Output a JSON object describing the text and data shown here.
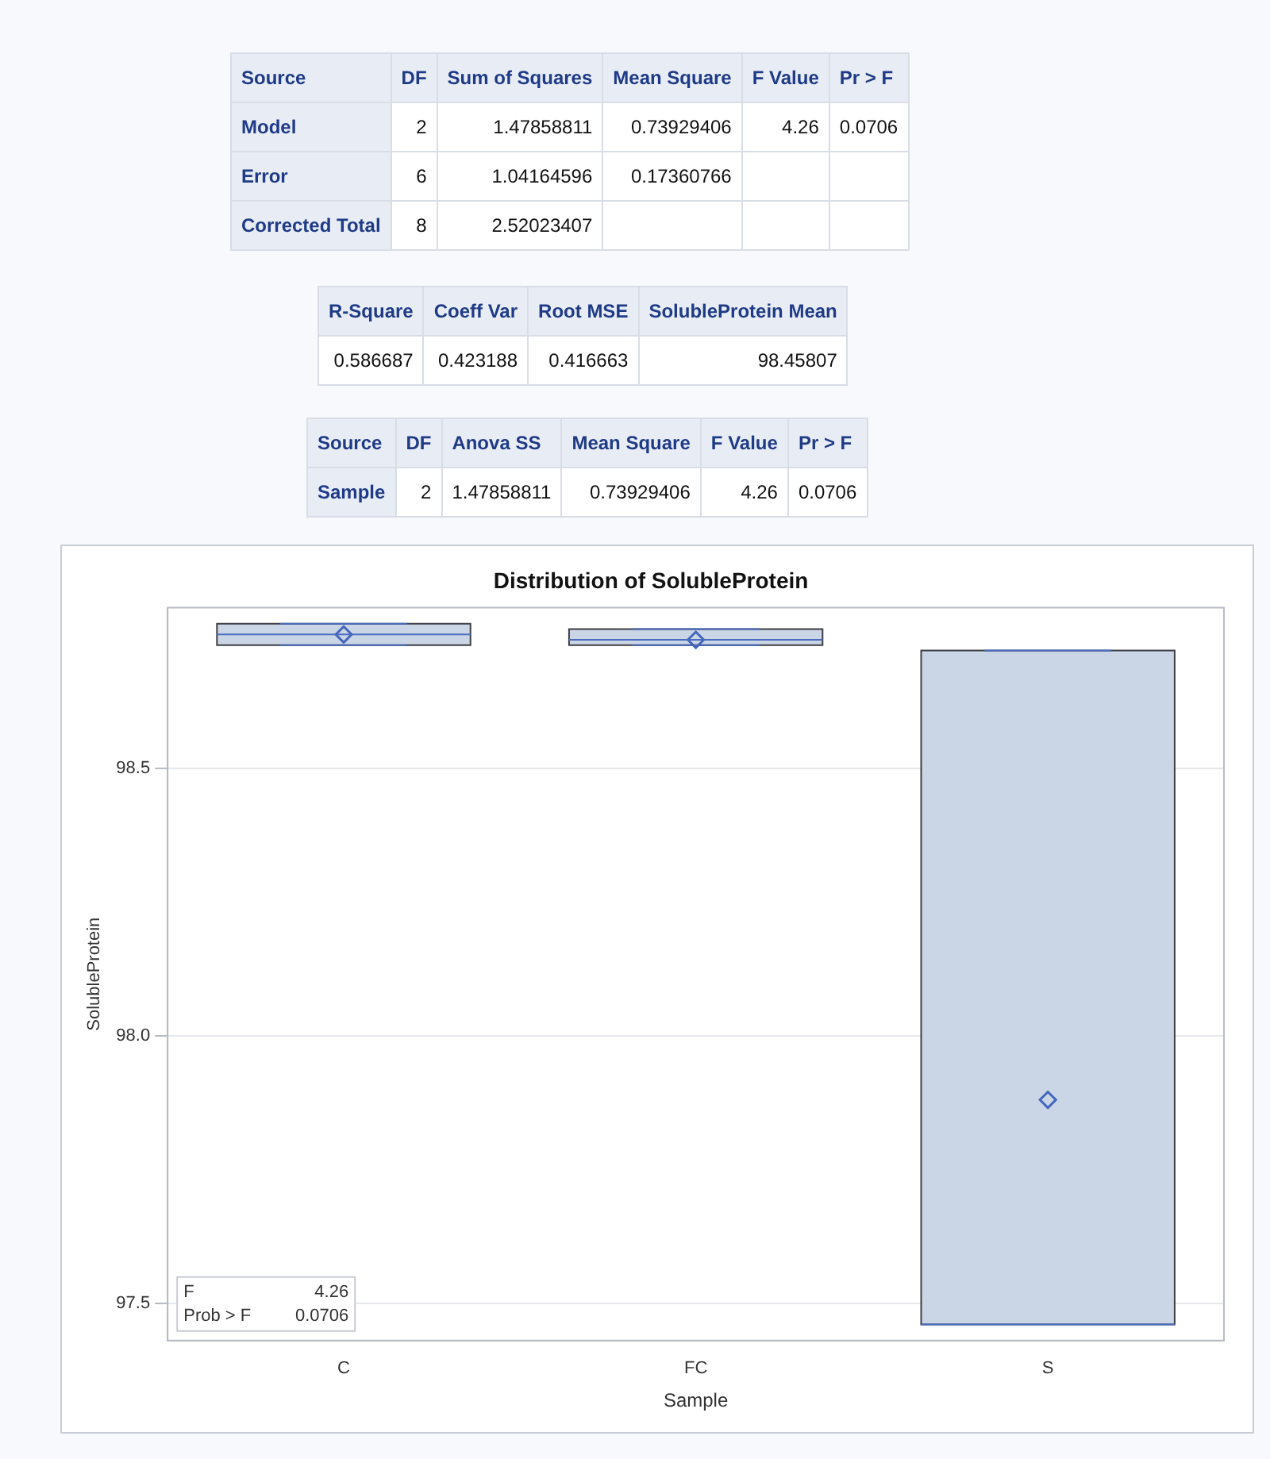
{
  "chart_data": [
    {
      "type": "other",
      "categories": [
        "Source",
        "DF",
        "Sum of Squares",
        "Mean Square",
        "F Value",
        "Pr > F"
      ],
      "cell_labels": [
        [
          "Model",
          "2",
          "1.47858811",
          "0.73929406",
          "4.26",
          "0.0706"
        ],
        [
          "Error",
          "6",
          "1.04164596",
          "0.17360766",
          null,
          null
        ],
        [
          "Corrected Total",
          "8",
          "2.52023407",
          null,
          null,
          null
        ]
      ]
    },
    {
      "type": "other",
      "categories": [
        "R-Square",
        "Coeff Var",
        "Root MSE",
        "SolubleProtein Mean"
      ],
      "cell_labels": [
        [
          "0.586687",
          "0.423188",
          "0.416663",
          "98.45807"
        ]
      ]
    },
    {
      "type": "other",
      "categories": [
        "Source",
        "DF",
        "Anova SS",
        "Mean Square",
        "F Value",
        "Pr > F"
      ],
      "cell_labels": [
        [
          "Sample",
          "2",
          "1.47858811",
          "0.73929406",
          "4.26",
          "0.0706"
        ]
      ]
    },
    {
      "type": "box",
      "title": "Distribution of SolubleProtein",
      "xlabel": "Sample",
      "ylabel": "SolubleProtein",
      "categories": [
        "C",
        "FC",
        "S"
      ],
      "series": [
        {
          "color": "#cad5e5",
          "boxes": [
            {
              "low": 98.73,
              "q1": 98.73,
              "median": 98.75,
              "q3": 98.77,
              "high": 98.77,
              "mean": 98.75
            },
            {
              "low": 98.73,
              "q1": 98.73,
              "median": 98.74,
              "q3": 98.76,
              "high": 98.76,
              "mean": 98.74
            },
            {
              "low": 97.46,
              "q1": 97.46,
              "median": 97.46,
              "q3": 98.72,
              "high": 98.72,
              "mean": 97.88
            }
          ]
        }
      ],
      "ylim": [
        97.43,
        98.8
      ],
      "yticks": [
        97.5,
        {
          "value": 98,
          "label": "98.0"
        },
        98.5
      ],
      "grid": "y",
      "legend": false,
      "marker": "diamond",
      "annotations": [
        "F 4.26",
        "Prob > F 0.0706"
      ]
    }
  ]
}
